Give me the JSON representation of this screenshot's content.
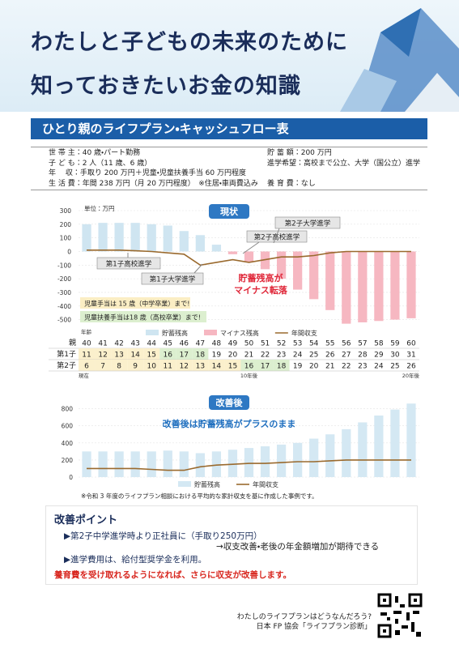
{
  "header": {
    "title_lines": [
      "わたしと子どもの未来のために",
      "知っておきたいお金の知識"
    ]
  },
  "section_title": "ひとり親のライフプラン・キャッシュフロー表",
  "profile": {
    "left": [
      "世 帯 主：40 歳・パート勤務",
      "子 ど も：2 人（11 歳、6 歳）",
      "年　 収：手取り 200 万円＋児童・児童扶養手当 60 万円程度",
      "生 活 費：年間 238 万円（月 20 万円程度）　※住居・車両費込み"
    ],
    "right": [
      "貯 蓄 額：200 万円",
      "進学希望：高校まで公立、大学（国公立）進学",
      "養 育 費：なし"
    ]
  },
  "chart_data": [
    {
      "type": "combo",
      "title": "現状",
      "unit": "単位：万円",
      "categories": [
        40,
        41,
        42,
        43,
        44,
        45,
        46,
        47,
        48,
        49,
        50,
        51,
        52,
        53,
        54,
        55,
        56,
        57,
        58,
        59,
        60
      ],
      "ylim": [
        -550,
        300
      ],
      "yticks": [
        300,
        200,
        100,
        0,
        -100,
        -200,
        -300,
        -400,
        -500
      ],
      "grid": true,
      "series": [
        {
          "name": "貯蓄残高",
          "type": "bar",
          "color": "#cfe5f1",
          "values": [
            200,
            210,
            210,
            210,
            200,
            190,
            150,
            120,
            50,
            null,
            null,
            null,
            null,
            null,
            null,
            null,
            null,
            null,
            null,
            null,
            null
          ]
        },
        {
          "name": "マイナス残高",
          "type": "bar",
          "color": "#f6b7c1",
          "values": [
            null,
            null,
            null,
            null,
            null,
            null,
            null,
            null,
            null,
            -20,
            -80,
            -130,
            -200,
            -280,
            -350,
            -430,
            -530,
            -520,
            -510,
            -500,
            -490
          ]
        },
        {
          "name": "年間収支",
          "type": "line",
          "color": "#9a6a2e",
          "values": [
            10,
            10,
            10,
            5,
            0,
            -10,
            -20,
            -100,
            -80,
            -60,
            -80,
            -60,
            -40,
            -40,
            -30,
            -10,
            0,
            0,
            0,
            0,
            0
          ]
        }
      ],
      "annotations": [
        "第1子高校進学",
        "第1子大学進学",
        "第2子高校進学",
        "第2子大学進学",
        "貯蓄残高が",
        "マイナス転落",
        "児童手当は 15 歳（中学卒業）まで!",
        "児童扶養手当は18 歳（高校卒業）まで!"
      ]
    },
    {
      "type": "combo",
      "title": "改善後",
      "subtitle": "改善後は貯蓄残高がプラスのまま",
      "ylim": [
        0,
        900
      ],
      "yticks": [
        0,
        200,
        400,
        600,
        800
      ],
      "grid": true,
      "series": [
        {
          "name": "貯蓄残高",
          "type": "bar",
          "color": "#d4e8f3",
          "values": [
            300,
            300,
            300,
            300,
            300,
            310,
            300,
            280,
            300,
            320,
            340,
            360,
            380,
            400,
            450,
            500,
            560,
            640,
            720,
            790,
            860
          ]
        },
        {
          "name": "年間収支",
          "type": "line",
          "color": "#9a6a2e",
          "values": [
            100,
            100,
            100,
            100,
            90,
            80,
            80,
            120,
            140,
            150,
            160,
            160,
            170,
            180,
            180,
            190,
            200,
            200,
            200,
            200,
            200
          ]
        }
      ]
    }
  ],
  "age_table": {
    "header": "年齢",
    "row_labels": [
      "親",
      "第1子",
      "第2子"
    ],
    "child1": [
      11,
      12,
      13,
      14,
      15,
      16,
      17,
      18,
      19,
      20,
      21,
      22,
      23,
      24,
      25,
      26,
      27,
      28,
      29,
      30,
      31
    ],
    "child2": [
      6,
      7,
      8,
      9,
      10,
      11,
      12,
      13,
      14,
      15,
      16,
      17,
      18,
      19,
      20,
      21,
      22,
      23,
      24,
      25,
      26
    ],
    "notes": [
      "現在",
      "10年後",
      "20年後"
    ]
  },
  "footnote": "※令和 3 年度のライフプラン相談における平均的な家計収支を基に作成した事例です。",
  "improvement": {
    "title": "改善ポイント",
    "items": [
      "▶第2子中学進学時より正社員に（手取り250万円）",
      "→収支改善・老後の年金額増加が期待できる",
      "▶進学費用は、給付型奨学金を利用。"
    ],
    "emphasis": "養育費を受け取れるようになれば、さらに収支が改善します。"
  },
  "footer": [
    "わたしのライフプランはどうなんだろう?",
    "日本 FP 協会「ライフプラン診断」"
  ]
}
